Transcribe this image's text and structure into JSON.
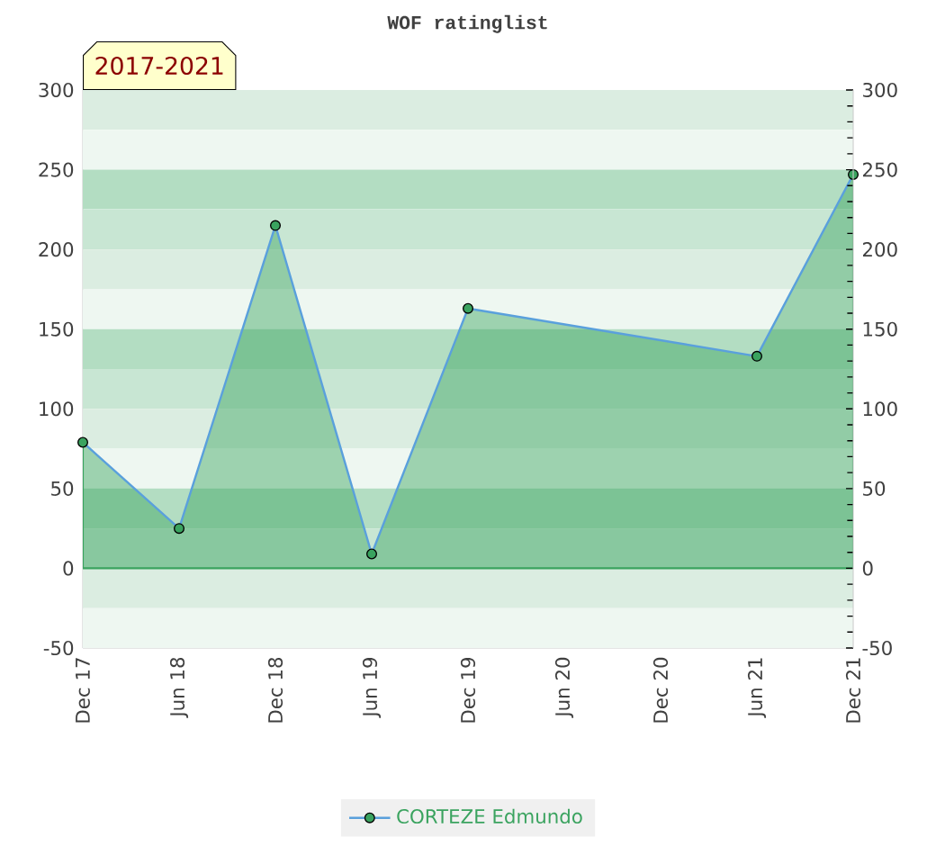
{
  "chart_data": {
    "type": "area",
    "title": "WOF ratinglist",
    "annotations": [
      "2017-2021"
    ],
    "x": [
      "2017-12",
      "2018-06",
      "2018-12",
      "2019-06",
      "2019-12",
      "2021-06",
      "2021-12"
    ],
    "series": [
      {
        "name": "CORTEZE Edmundo",
        "color": "#3aa35f",
        "values": [
          79,
          25,
          215,
          9,
          163,
          133,
          247
        ]
      }
    ],
    "xlim": [
      "2017-12",
      "2021-12"
    ],
    "xticks": [
      {
        "value": "2017-12",
        "label": "Dec 17"
      },
      {
        "value": "2018-06",
        "label": "Jun 18"
      },
      {
        "value": "2018-12",
        "label": "Dec 18"
      },
      {
        "value": "2019-06",
        "label": "Jun 19"
      },
      {
        "value": "2019-12",
        "label": "Dec 19"
      },
      {
        "value": "2020-06",
        "label": "Jun 20"
      },
      {
        "value": "2020-12",
        "label": "Dec 20"
      },
      {
        "value": "2021-06",
        "label": "Jun 21"
      },
      {
        "value": "2021-12",
        "label": "Dec 21"
      }
    ],
    "ylim": [
      -50,
      300
    ],
    "yticks": [
      -50,
      0,
      50,
      100,
      150,
      200,
      250,
      300
    ],
    "y2lim": [
      -50,
      300
    ],
    "y2ticks": [
      -50,
      0,
      50,
      100,
      150,
      200,
      250,
      300
    ],
    "bands": [
      {
        "axis": "y",
        "from": 275,
        "to": 300,
        "color": "#dbede1"
      },
      {
        "axis": "y",
        "from": 250,
        "to": 275,
        "color": "#eef7f1"
      },
      {
        "axis": "y",
        "from": 225,
        "to": 250,
        "color": "#b3ddc2"
      },
      {
        "axis": "y",
        "from": 200,
        "to": 225,
        "color": "#c8e6d3"
      },
      {
        "axis": "y",
        "from": 175,
        "to": 200,
        "color": "#dbede1"
      },
      {
        "axis": "y",
        "from": 150,
        "to": 175,
        "color": "#eef7f1"
      },
      {
        "axis": "y",
        "from": 125,
        "to": 150,
        "color": "#b3ddc2"
      },
      {
        "axis": "y",
        "from": 100,
        "to": 125,
        "color": "#c8e6d3"
      },
      {
        "axis": "y",
        "from": 75,
        "to": 100,
        "color": "#dbede1"
      },
      {
        "axis": "y",
        "from": 50,
        "to": 75,
        "color": "#eef7f1"
      },
      {
        "axis": "y",
        "from": 25,
        "to": 50,
        "color": "#b3ddc2"
      },
      {
        "axis": "y",
        "from": 0,
        "to": 25,
        "color": "#c8e6d3"
      },
      {
        "axis": "y",
        "from": -25,
        "to": 0,
        "color": "#dbede1"
      },
      {
        "axis": "y",
        "from": -50,
        "to": -25,
        "color": "#eef7f1"
      }
    ],
    "marker": "circle",
    "legend": "bottom"
  }
}
